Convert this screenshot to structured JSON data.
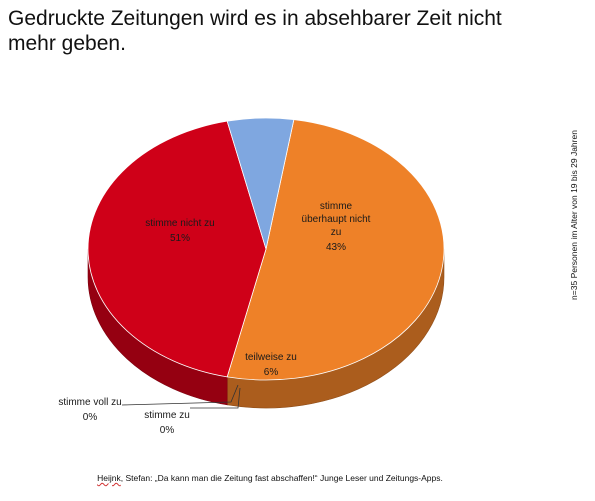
{
  "chart_data": {
    "type": "pie",
    "title": "Gedruckte Zeitungen wird es in absehbarer Zeit nicht mehr geben.",
    "slices": [
      {
        "label": "stimme nicht zu",
        "value": 51,
        "value_label": "51%",
        "color": "#ee8128"
      },
      {
        "label": "stimme überhaupt nicht zu",
        "value": 43,
        "value_label": "43%",
        "color": "#cf0018"
      },
      {
        "label": "teilweise zu",
        "value": 6,
        "value_label": "6%",
        "color": "#7fa7e0"
      },
      {
        "label": "stimme zu",
        "value": 0,
        "value_label": "0%",
        "color": "#3a6bbf"
      },
      {
        "label": "stimme voll zu",
        "value": 0,
        "value_label": "0%",
        "color": "#2b4f8a"
      }
    ],
    "legend": "none",
    "style": "3d"
  },
  "side_note": "n=35 Personen im Alter von 19 bis 29 Jahren",
  "footer": {
    "author": "Heijnk",
    "citation": ", Stefan: „Da kann man die Zeitung fast abschaffen!“ Junge Leser und Zeitungs-Apps."
  }
}
